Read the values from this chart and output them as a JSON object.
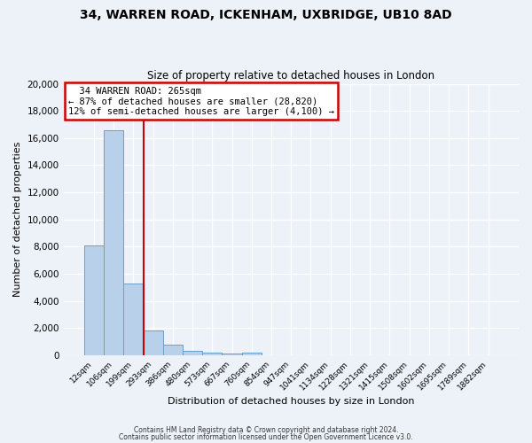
{
  "title1": "34, WARREN ROAD, ICKENHAM, UXBRIDGE, UB10 8AD",
  "title2": "Size of property relative to detached houses in London",
  "xlabel": "Distribution of detached houses by size in London",
  "ylabel": "Number of detached properties",
  "bar_labels": [
    "12sqm",
    "106sqm",
    "199sqm",
    "293sqm",
    "386sqm",
    "480sqm",
    "573sqm",
    "667sqm",
    "760sqm",
    "854sqm",
    "947sqm",
    "1041sqm",
    "1134sqm",
    "1228sqm",
    "1321sqm",
    "1415sqm",
    "1508sqm",
    "1602sqm",
    "1695sqm",
    "1789sqm",
    "1882sqm"
  ],
  "bar_heights": [
    8100,
    16600,
    5300,
    1850,
    750,
    300,
    200,
    150,
    180,
    0,
    0,
    0,
    0,
    0,
    0,
    0,
    0,
    0,
    0,
    0,
    0
  ],
  "bar_color": "#b8d0ea",
  "bar_edge_color": "#6aa0cc",
  "annotation_title": "34 WARREN ROAD: 265sqm",
  "annotation_line1": "← 87% of detached houses are smaller (28,820)",
  "annotation_line2": "12% of semi-detached houses are larger (4,100) →",
  "annotation_box_color": "#ffffff",
  "annotation_box_edge": "#cc0000",
  "footer1": "Contains HM Land Registry data © Crown copyright and database right 2024.",
  "footer2": "Contains public sector information licensed under the Open Government Licence v3.0.",
  "bg_color": "#edf2f9",
  "ylim": [
    0,
    20000
  ],
  "yticks": [
    0,
    2000,
    4000,
    6000,
    8000,
    10000,
    12000,
    14000,
    16000,
    18000,
    20000
  ]
}
